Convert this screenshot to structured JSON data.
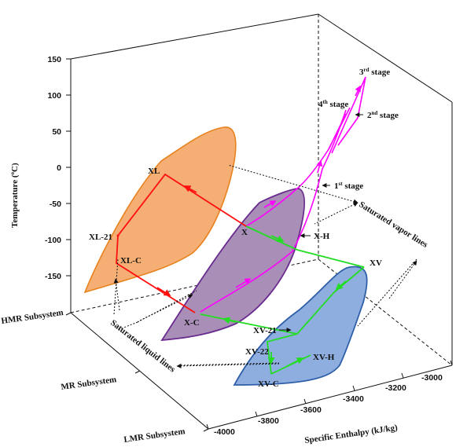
{
  "axes": {
    "temperature_label": "Temperature (",
    "temperature_sup": "o",
    "temperature_unit": "C)",
    "enthalpy_label": "Specific Enthalpy (kJ/kg)",
    "temperature_ticks": [
      "150",
      "100",
      "50",
      "0",
      "-50",
      "-100",
      "-150"
    ],
    "enthalpy_ticks": [
      "-4000",
      "-3800",
      "-3600",
      "-3400",
      "-3200",
      "-3000"
    ],
    "subsystems": [
      "HMR Subsystem",
      "MR Subsystem",
      "LMR Subsystem"
    ]
  },
  "states": {
    "xl": "XL",
    "xl21": "XL-21",
    "xlc": "XL-C",
    "x": "X",
    "xh": "X-H",
    "xc": "X-C",
    "xv": "XV",
    "xv21": "XV-21",
    "xv22": "XV-22",
    "xvh": "XV-H",
    "xvc": "XV-C"
  },
  "stages": {
    "s1": "1",
    "s1_sup": "st",
    "s1_text": " stage",
    "s2": "2",
    "s2_sup": "nd",
    "s2_text": " stage",
    "s3": "3",
    "s3_sup": "rd",
    "s3_text": " stage",
    "s4": "4",
    "s4_sup": "th",
    "s4_text": " stage"
  },
  "annotations": {
    "saturated_vapor": "Saturated vapor lines",
    "saturated_liquid": "Saturated liquid lines"
  },
  "colors": {
    "hmr_fill": "#F5AE73",
    "hmr_edge": "#E8821E",
    "mr_fill": "#A98FB8",
    "mr_edge": "#6A2A8F",
    "lmr_fill": "#8EAEE0",
    "lmr_edge": "#2E5FA8",
    "hmr_path": "#FF1010",
    "mr_path": "#22DD22",
    "compressor_path": "#FF00FF"
  }
}
